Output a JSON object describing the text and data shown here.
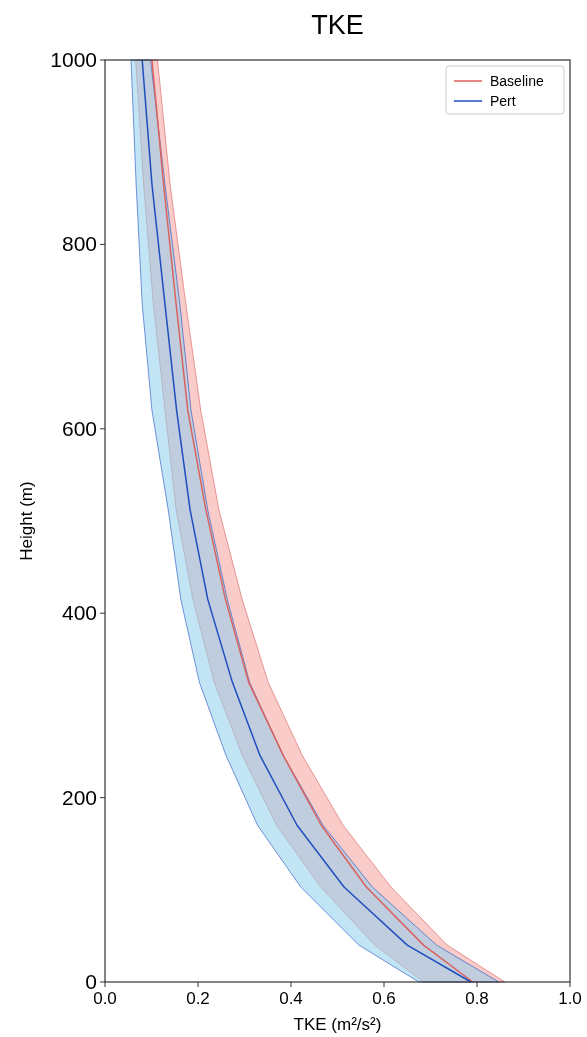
{
  "chart_data": {
    "type": "line",
    "orientation": "horizontal",
    "title": "TKE",
    "xlabel": "TKE (m²/s²)",
    "ylabel": "Height (m)",
    "xlim": [
      0,
      1
    ],
    "xticks": [
      {
        "value": 0,
        "label": "0.0"
      },
      {
        "value": 0.2,
        "label": "0.2"
      },
      {
        "value": 0.4,
        "label": "0.4"
      },
      {
        "value": 0.6,
        "label": "0.6"
      },
      {
        "value": 0.8,
        "label": "0.8"
      },
      {
        "value": 1,
        "label": "1.0"
      }
    ],
    "ylim": [
      0,
      1000
    ],
    "yticks": [
      0,
      200,
      400,
      600,
      800,
      1000
    ],
    "grid": false,
    "legend": "top right",
    "x": [
      0,
      40,
      103,
      170,
      246,
      325,
      415,
      512,
      620,
      735,
      865,
      1000
    ],
    "series": [
      {
        "name": "Baseline",
        "color": "#d9625e",
        "values": [
          0.791,
          0.685,
          0.562,
          0.465,
          0.383,
          0.309,
          0.259,
          0.217,
          0.178,
          0.153,
          0.126,
          0.101
        ],
        "lower": [
          0.685,
          0.58,
          0.464,
          0.369,
          0.295,
          0.235,
          0.189,
          0.153,
          0.129,
          0.104,
          0.083,
          0.066
        ],
        "upper": [
          0.86,
          0.736,
          0.615,
          0.512,
          0.424,
          0.351,
          0.295,
          0.245,
          0.206,
          0.174,
          0.14,
          0.113
        ]
      },
      {
        "name": "Pert",
        "color": "#1f4fbf",
        "values": [
          0.787,
          0.65,
          0.514,
          0.413,
          0.333,
          0.274,
          0.221,
          0.183,
          0.154,
          0.129,
          0.101,
          0.08
        ],
        "lower": [
          0.675,
          0.546,
          0.421,
          0.328,
          0.26,
          0.203,
          0.163,
          0.136,
          0.101,
          0.08,
          0.067,
          0.056
        ],
        "upper": [
          0.847,
          0.713,
          0.575,
          0.469,
          0.383,
          0.311,
          0.263,
          0.221,
          0.185,
          0.161,
          0.129,
          0.098
        ]
      }
    ]
  }
}
